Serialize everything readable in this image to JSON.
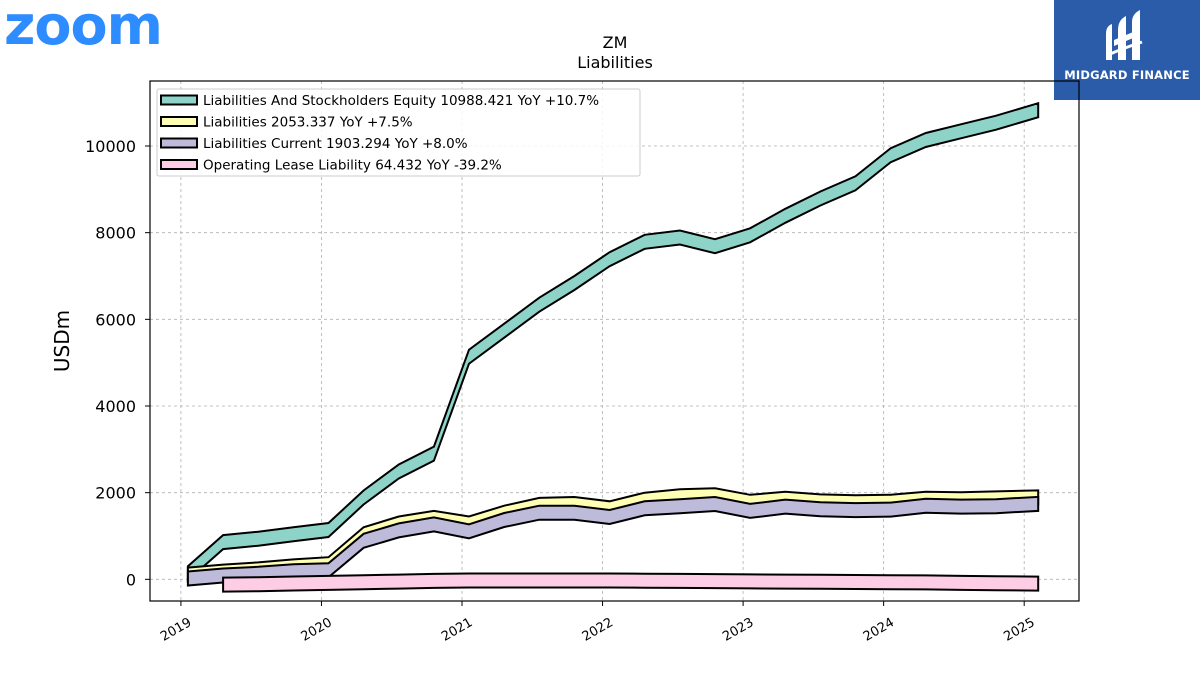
{
  "header": {
    "logo_text": "zoom",
    "brand_name": "MIDGARD FINANCE"
  },
  "colors": {
    "zoom_blue": "#2d8cff",
    "brand_bg": "#2a5caa",
    "grid": "#b0b0b0"
  },
  "chart_data": {
    "type": "area",
    "title": "ZM",
    "subtitle": "Liabilities",
    "ylabel": "USDm",
    "xlabel": "",
    "ylim": [
      -500,
      11500
    ],
    "xlim": [
      2018.78,
      2025.39
    ],
    "yticks": [
      0,
      2000,
      4000,
      6000,
      8000,
      10000
    ],
    "xticks": [
      "2019",
      "2020",
      "2021",
      "2022",
      "2023",
      "2024",
      "2025"
    ],
    "grid": true,
    "legend_position": "top-left",
    "series": [
      {
        "name": "Liabilities And Stockholders Equity",
        "legend_label": "Liabilities And Stockholders Equity  10988.421 YoY +10.7%",
        "color": "#8dd3c7",
        "x": [
          2019.05,
          2019.3,
          2019.55,
          2019.8,
          2020.05,
          2020.3,
          2020.55,
          2020.8,
          2021.05,
          2021.3,
          2021.55,
          2021.8,
          2022.05,
          2022.3,
          2022.55,
          2022.8,
          2023.05,
          2023.3,
          2023.55,
          2023.8,
          2024.05,
          2024.3,
          2024.55,
          2024.8,
          2025.1
        ],
        "values": [
          300,
          1020,
          1100,
          1200,
          1300,
          2050,
          2650,
          3060,
          5300,
          5900,
          6500,
          7000,
          7550,
          7950,
          8050,
          7850,
          8100,
          8550,
          8950,
          9300,
          9950,
          10300,
          10500,
          10700,
          10988
        ]
      },
      {
        "name": "Liabilities",
        "legend_label": "Liabilities  2053.337 YoY +7.5%",
        "color": "#ffffb3",
        "x": [
          2019.05,
          2019.3,
          2019.55,
          2019.8,
          2020.05,
          2020.3,
          2020.55,
          2020.8,
          2021.05,
          2021.3,
          2021.55,
          2021.8,
          2022.05,
          2022.3,
          2022.55,
          2022.8,
          2023.05,
          2023.3,
          2023.55,
          2023.8,
          2024.05,
          2024.3,
          2024.55,
          2024.8,
          2025.1
        ],
        "values": [
          270,
          340,
          390,
          460,
          510,
          1200,
          1450,
          1580,
          1450,
          1700,
          1880,
          1900,
          1800,
          2000,
          2080,
          2100,
          1950,
          2020,
          1960,
          1940,
          1950,
          2020,
          2010,
          2030,
          2053
        ]
      },
      {
        "name": "Liabilities Current",
        "legend_label": "Liabilities Current  1903.294 YoY +8.0%",
        "color": "#bebada",
        "x": [
          2019.05,
          2019.3,
          2019.55,
          2019.8,
          2020.05,
          2020.3,
          2020.55,
          2020.8,
          2021.05,
          2021.3,
          2021.55,
          2021.8,
          2022.05,
          2022.3,
          2022.55,
          2022.8,
          2023.05,
          2023.3,
          2023.55,
          2023.8,
          2024.05,
          2024.3,
          2024.55,
          2024.8,
          2025.1
        ],
        "values": [
          180,
          250,
          290,
          350,
          370,
          1050,
          1290,
          1430,
          1270,
          1530,
          1700,
          1700,
          1600,
          1800,
          1850,
          1900,
          1740,
          1840,
          1780,
          1760,
          1770,
          1860,
          1840,
          1850,
          1903
        ]
      },
      {
        "name": "Operating Lease Liability",
        "legend_label": "Operating Lease Liability  64.432 YoY -39.2%",
        "color": "#fccde5",
        "x": [
          2019.3,
          2019.55,
          2019.8,
          2020.05,
          2020.3,
          2020.55,
          2020.8,
          2021.05,
          2021.3,
          2021.55,
          2021.8,
          2022.05,
          2022.3,
          2022.55,
          2022.8,
          2023.05,
          2023.3,
          2023.55,
          2023.8,
          2024.05,
          2024.3,
          2024.55,
          2024.8,
          2025.1
        ],
        "values": [
          40,
          50,
          65,
          80,
          95,
          110,
          125,
          135,
          135,
          135,
          135,
          135,
          130,
          125,
          120,
          115,
          110,
          105,
          100,
          95,
          90,
          80,
          72,
          64
        ]
      }
    ]
  }
}
